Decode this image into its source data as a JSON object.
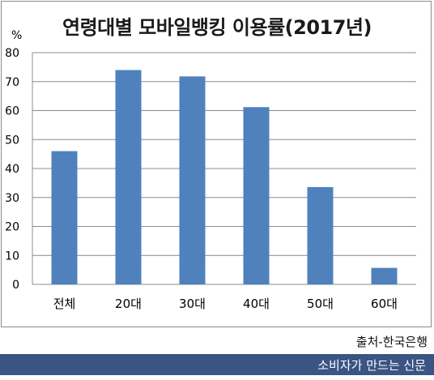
{
  "chart_data": {
    "type": "bar",
    "title": "연령대별 모바일뱅킹 이용률(2017년)",
    "y_unit": "%",
    "categories": [
      "전체",
      "20대",
      "30대",
      "40대",
      "50대",
      "60대"
    ],
    "values": [
      46,
      74,
      71.8,
      61.2,
      33.6,
      5.7
    ],
    "ylim": [
      0,
      80
    ],
    "yticks": [
      0,
      10,
      20,
      30,
      40,
      50,
      60,
      70,
      80
    ],
    "grid": true,
    "legend": "none",
    "bar_color": "#4f81bd"
  },
  "source_label": "출처-한국은행",
  "footer_label": "소비자가 만드는 신문",
  "colors": {
    "footer_bg": "#3a5483",
    "grid": "#8c8c8c"
  }
}
